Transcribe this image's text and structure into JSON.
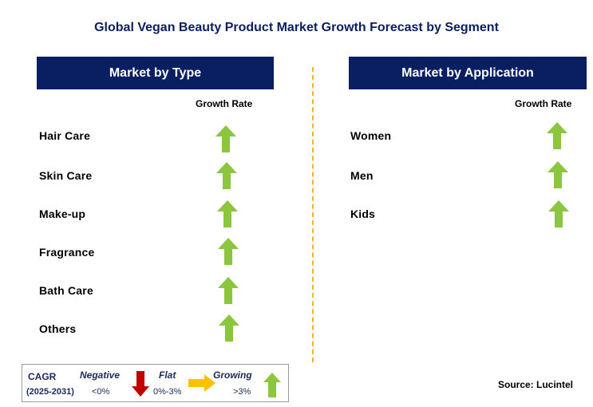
{
  "title": "Global Vegan Beauty Product Market Growth Forecast by Segment",
  "left_panel": {
    "header": "Market by Type",
    "growth_rate_label": "Growth Rate",
    "rows": [
      {
        "label": "Hair Care",
        "trend": "growing"
      },
      {
        "label": "Skin Care",
        "trend": "growing"
      },
      {
        "label": "Make-up",
        "trend": "growing"
      },
      {
        "label": "Fragrance",
        "trend": "growing"
      },
      {
        "label": "Bath Care",
        "trend": "growing"
      },
      {
        "label": "Others",
        "trend": "growing"
      }
    ]
  },
  "right_panel": {
    "header": "Market by Application",
    "growth_rate_label": "Growth Rate",
    "rows": [
      {
        "label": "Women",
        "trend": "growing"
      },
      {
        "label": "Men",
        "trend": "growing"
      },
      {
        "label": "Kids",
        "trend": "growing"
      }
    ]
  },
  "legend": {
    "cagr_label": "CAGR",
    "period": "(2025-2031)",
    "negative": {
      "label": "Negative",
      "range": "<0%",
      "icon": "red-down-arrow-icon"
    },
    "flat": {
      "label": "Flat",
      "range": "0%-3%",
      "icon": "orange-right-arrow-icon"
    },
    "growing": {
      "label": "Growing",
      "range": ">3%",
      "icon": "green-up-arrow-icon"
    }
  },
  "source": "Source: Lucintel",
  "colors": {
    "header_bg": "#0a1f61",
    "title": "#0b1f5c",
    "growing": "#8cc63f",
    "negative": "#c00000",
    "flat": "#ffc000",
    "divider": "#f2b233"
  }
}
